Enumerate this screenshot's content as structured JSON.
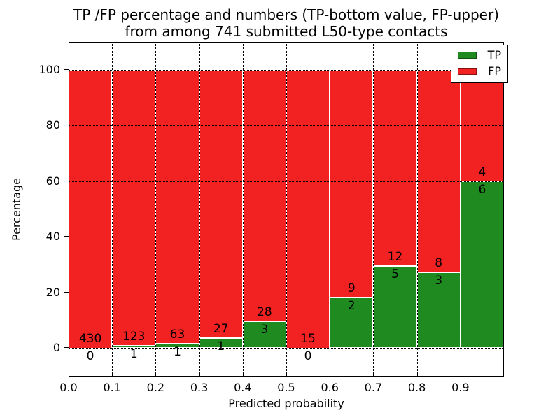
{
  "title": {
    "line1": "TP /FP percentage and numbers (TP-bottom value, FP-upper)",
    "line2": "from among 741 submitted L50-type contacts"
  },
  "total_contacts": 741,
  "colors": {
    "tp_green": "#1f8a1f",
    "fp_red": "#f32222",
    "grid": "#000000"
  },
  "legend": {
    "entries": [
      {
        "label": "TP",
        "color": "#1f8a1f"
      },
      {
        "label": "FP",
        "color": "#f32222"
      }
    ],
    "position": "upper right"
  },
  "chart_data": {
    "type": "bar",
    "stacked": true,
    "normalized_to_percent": true,
    "title": "TP /FP percentage and numbers (TP-bottom value, FP-upper) from among 741 submitted L50-type contacts",
    "xlabel": "Predicted probability",
    "ylabel": "Percentage",
    "bin_edges": [
      0.0,
      0.1,
      0.2,
      0.3,
      0.4,
      0.5,
      0.6,
      0.7,
      0.8,
      0.9,
      1.0
    ],
    "xtick_labels": [
      "0.0",
      "0.1",
      "0.2",
      "0.3",
      "0.4",
      "0.5",
      "0.6",
      "0.7",
      "0.8",
      "0.9"
    ],
    "ytick_values": [
      0,
      20,
      40,
      60,
      80,
      100
    ],
    "ytick_labels": [
      "0",
      "20",
      "40",
      "60",
      "80",
      "100"
    ],
    "xlim": [
      0.0,
      1.0
    ],
    "ylim": [
      -10,
      110
    ],
    "grid": "dotted, drawn above bars",
    "series": [
      {
        "name": "TP",
        "color": "#1f8a1f",
        "counts": [
          0,
          1,
          1,
          1,
          3,
          0,
          2,
          5,
          3,
          6
        ]
      },
      {
        "name": "FP",
        "color": "#f32222",
        "counts": [
          430,
          123,
          63,
          27,
          28,
          15,
          9,
          12,
          8,
          4
        ]
      }
    ],
    "tp_percent_per_bin": [
      0.0,
      0.81,
      1.56,
      3.57,
      9.68,
      0.0,
      18.18,
      29.41,
      27.27,
      60.0
    ],
    "annotation_rule": "FP count printed just above TP/FP boundary, TP count just below it"
  }
}
